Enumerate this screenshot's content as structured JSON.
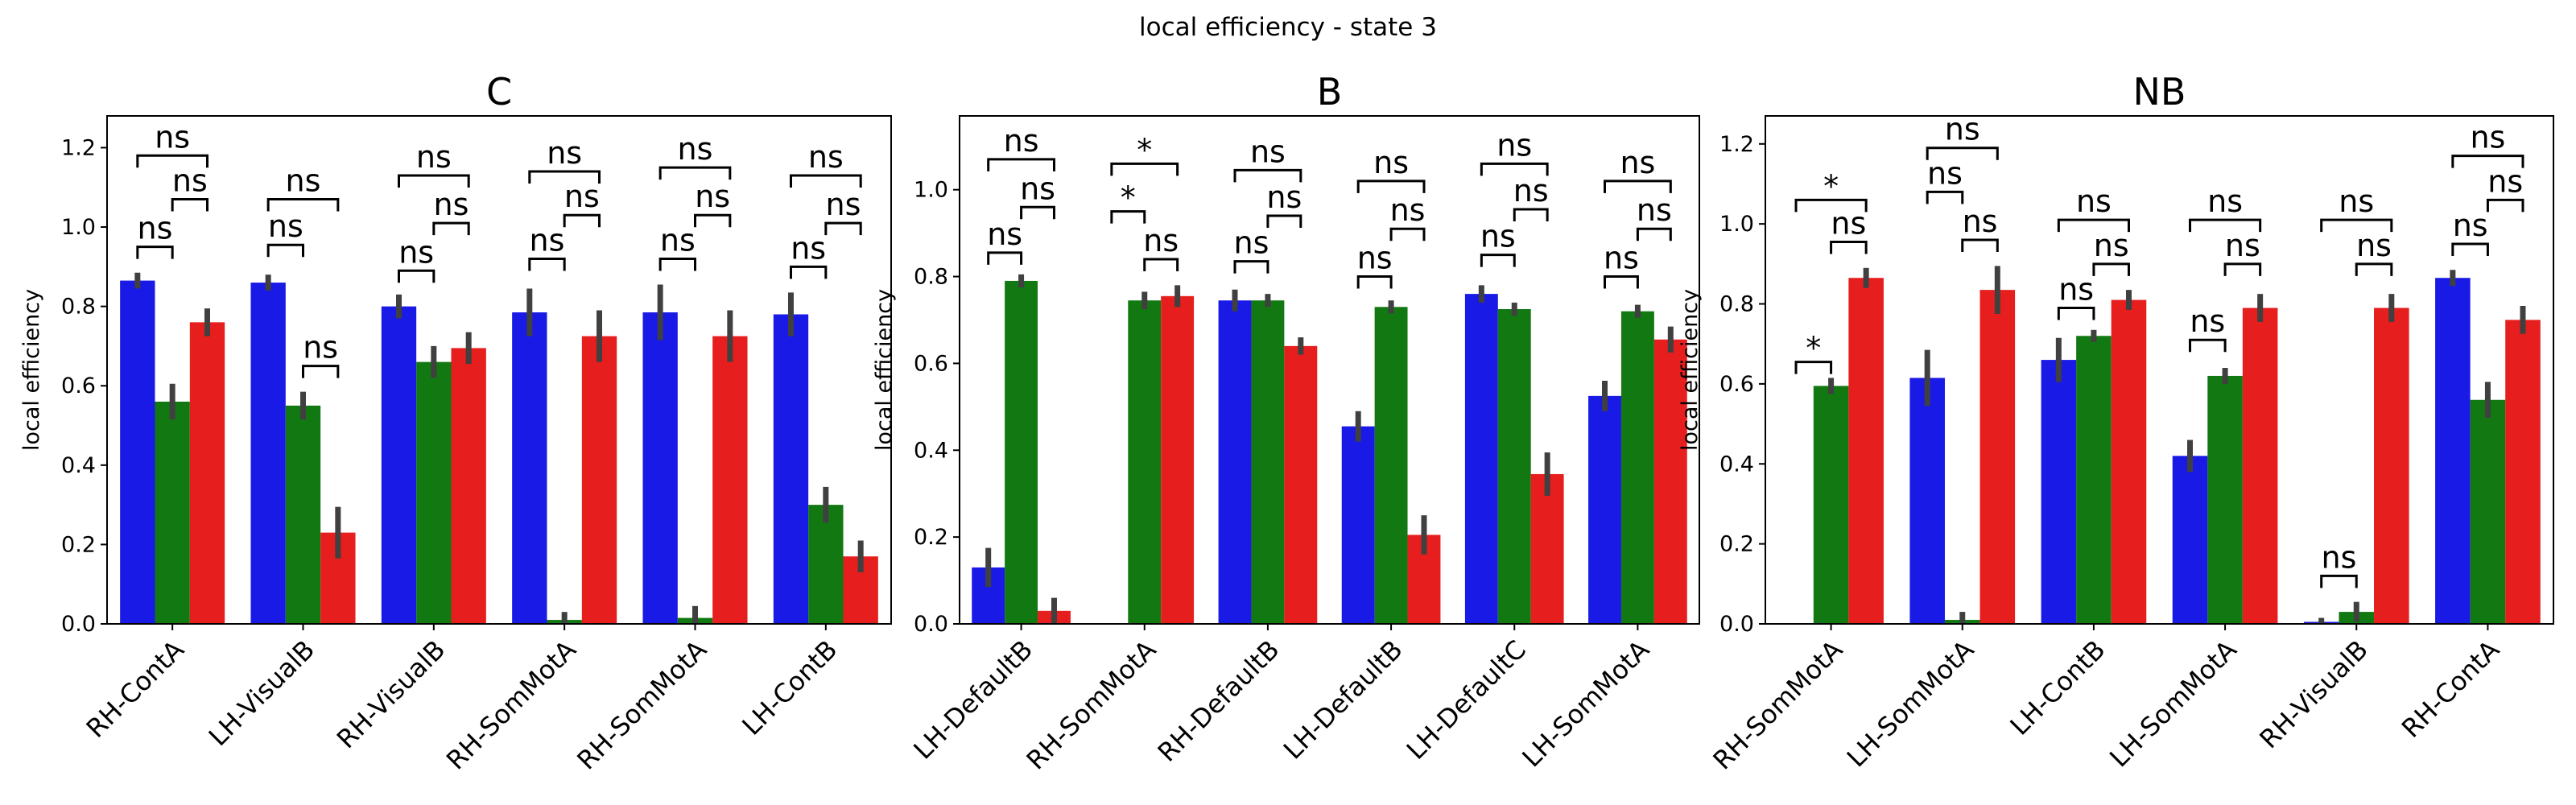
{
  "figure_title": "local efficiency - state 3",
  "colors": {
    "series1": "#1a1ae6",
    "series2": "#127812",
    "series3": "#e61e1e",
    "errorbar": "#404040"
  },
  "chart_data": [
    {
      "type": "bar",
      "title": "C",
      "ylabel": "local efficiency",
      "ylim": [
        0,
        1.28
      ],
      "yticks": [
        0.0,
        0.2,
        0.4,
        0.6,
        0.8,
        1.0,
        1.2
      ],
      "ytick_labels": [
        "0.0",
        "0.2",
        "0.4",
        "0.6",
        "0.8",
        "1.0",
        "1.2"
      ],
      "categories": [
        "RH-ContA",
        "LH-VisualB",
        "RH-VisualB",
        "RH-SomMotA",
        "RH-SomMotA",
        "LH-ContB"
      ],
      "series": [
        {
          "values": [
            0.865,
            0.86,
            0.8,
            0.785,
            0.785,
            0.78
          ],
          "err": [
            0.02,
            0.02,
            0.03,
            0.06,
            0.07,
            0.055
          ]
        },
        {
          "values": [
            0.56,
            0.55,
            0.66,
            0.01,
            0.015,
            0.3
          ],
          "err": [
            0.045,
            0.035,
            0.04,
            0.02,
            0.03,
            0.045
          ]
        },
        {
          "values": [
            0.76,
            0.23,
            0.695,
            0.725,
            0.725,
            0.17
          ],
          "err": [
            0.035,
            0.065,
            0.04,
            0.065,
            0.065,
            0.04
          ]
        }
      ],
      "annotations": [
        {
          "category": 0,
          "from": 0,
          "to": 1,
          "label": "ns",
          "y": 0.95
        },
        {
          "category": 0,
          "from": 1,
          "to": 2,
          "label": "ns",
          "y": 1.07
        },
        {
          "category": 0,
          "from": 0,
          "to": 2,
          "label": "ns",
          "y": 1.18
        },
        {
          "category": 1,
          "from": 0,
          "to": 1,
          "label": "ns",
          "y": 0.955
        },
        {
          "category": 1,
          "from": 1,
          "to": 2,
          "label": "ns",
          "y": 0.65
        },
        {
          "category": 1,
          "from": 0,
          "to": 2,
          "label": "ns",
          "y": 1.07
        },
        {
          "category": 2,
          "from": 0,
          "to": 1,
          "label": "ns",
          "y": 0.89
        },
        {
          "category": 2,
          "from": 1,
          "to": 2,
          "label": "ns",
          "y": 1.01
        },
        {
          "category": 2,
          "from": 0,
          "to": 2,
          "label": "ns",
          "y": 1.13
        },
        {
          "category": 3,
          "from": 0,
          "to": 1,
          "label": "ns",
          "y": 0.92
        },
        {
          "category": 3,
          "from": 1,
          "to": 2,
          "label": "ns",
          "y": 1.03
        },
        {
          "category": 3,
          "from": 0,
          "to": 2,
          "label": "ns",
          "y": 1.14
        },
        {
          "category": 4,
          "from": 0,
          "to": 1,
          "label": "ns",
          "y": 0.92
        },
        {
          "category": 4,
          "from": 1,
          "to": 2,
          "label": "ns",
          "y": 1.03
        },
        {
          "category": 4,
          "from": 0,
          "to": 2,
          "label": "ns",
          "y": 1.15
        },
        {
          "category": 5,
          "from": 0,
          "to": 1,
          "label": "ns",
          "y": 0.9
        },
        {
          "category": 5,
          "from": 1,
          "to": 2,
          "label": "ns",
          "y": 1.01
        },
        {
          "category": 5,
          "from": 0,
          "to": 2,
          "label": "ns",
          "y": 1.13
        }
      ]
    },
    {
      "type": "bar",
      "title": "B",
      "ylabel": "local efficiency",
      "ylim": [
        0,
        1.17
      ],
      "yticks": [
        0.0,
        0.2,
        0.4,
        0.6,
        0.8,
        1.0
      ],
      "ytick_labels": [
        "0.0",
        "0.2",
        "0.4",
        "0.6",
        "0.8",
        "1.0"
      ],
      "categories": [
        "LH-DefaultB",
        "RH-SomMotA",
        "RH-DefaultB",
        "LH-DefaultB",
        "LH-DefaultC",
        "LH-SomMotA"
      ],
      "series": [
        {
          "values": [
            0.13,
            0.0,
            0.745,
            0.455,
            0.76,
            0.525
          ],
          "err": [
            0.045,
            0.0,
            0.025,
            0.035,
            0.02,
            0.035
          ]
        },
        {
          "values": [
            0.79,
            0.745,
            0.745,
            0.73,
            0.725,
            0.72
          ],
          "err": [
            0.015,
            0.02,
            0.015,
            0.015,
            0.015,
            0.015
          ]
        },
        {
          "values": [
            0.03,
            0.755,
            0.64,
            0.205,
            0.345,
            0.655
          ],
          "err": [
            0.03,
            0.025,
            0.02,
            0.045,
            0.05,
            0.03
          ]
        }
      ],
      "annotations": [
        {
          "category": 0,
          "from": 0,
          "to": 1,
          "label": "ns",
          "y": 0.855
        },
        {
          "category": 0,
          "from": 1,
          "to": 2,
          "label": "ns",
          "y": 0.96
        },
        {
          "category": 0,
          "from": 0,
          "to": 2,
          "label": "ns",
          "y": 1.07
        },
        {
          "category": 1,
          "from": 0,
          "to": 1,
          "label": "*",
          "y": 0.95
        },
        {
          "category": 1,
          "from": 1,
          "to": 2,
          "label": "ns",
          "y": 0.84
        },
        {
          "category": 1,
          "from": 0,
          "to": 2,
          "label": "*",
          "y": 1.06
        },
        {
          "category": 2,
          "from": 0,
          "to": 1,
          "label": "ns",
          "y": 0.835
        },
        {
          "category": 2,
          "from": 1,
          "to": 2,
          "label": "ns",
          "y": 0.94
        },
        {
          "category": 2,
          "from": 0,
          "to": 2,
          "label": "ns",
          "y": 1.045
        },
        {
          "category": 3,
          "from": 0,
          "to": 1,
          "label": "ns",
          "y": 0.8
        },
        {
          "category": 3,
          "from": 1,
          "to": 2,
          "label": "ns",
          "y": 0.91
        },
        {
          "category": 3,
          "from": 0,
          "to": 2,
          "label": "ns",
          "y": 1.02
        },
        {
          "category": 4,
          "from": 0,
          "to": 1,
          "label": "ns",
          "y": 0.85
        },
        {
          "category": 4,
          "from": 1,
          "to": 2,
          "label": "ns",
          "y": 0.955
        },
        {
          "category": 4,
          "from": 0,
          "to": 2,
          "label": "ns",
          "y": 1.06
        },
        {
          "category": 5,
          "from": 0,
          "to": 1,
          "label": "ns",
          "y": 0.8
        },
        {
          "category": 5,
          "from": 1,
          "to": 2,
          "label": "ns",
          "y": 0.91
        },
        {
          "category": 5,
          "from": 0,
          "to": 2,
          "label": "ns",
          "y": 1.02
        }
      ]
    },
    {
      "type": "bar",
      "title": "NB",
      "ylabel": "local efficiency",
      "ylim": [
        0,
        1.27
      ],
      "yticks": [
        0.0,
        0.2,
        0.4,
        0.6,
        0.8,
        1.0,
        1.2
      ],
      "ytick_labels": [
        "0.0",
        "0.2",
        "0.4",
        "0.6",
        "0.8",
        "1.0",
        "1.2"
      ],
      "categories": [
        "RH-SomMotA",
        "LH-SomMotA",
        "LH-ContB",
        "LH-SomMotA",
        "RH-VisualB",
        "RH-ContA"
      ],
      "series": [
        {
          "values": [
            0.0,
            0.615,
            0.66,
            0.42,
            0.005,
            0.865
          ],
          "err": [
            0.0,
            0.07,
            0.055,
            0.04,
            0.01,
            0.02
          ]
        },
        {
          "values": [
            0.595,
            0.01,
            0.72,
            0.62,
            0.03,
            0.56
          ],
          "err": [
            0.02,
            0.02,
            0.015,
            0.02,
            0.025,
            0.045
          ]
        },
        {
          "values": [
            0.865,
            0.835,
            0.81,
            0.79,
            0.79,
            0.76
          ],
          "err": [
            0.025,
            0.06,
            0.025,
            0.035,
            0.035,
            0.035
          ]
        }
      ],
      "annotations": [
        {
          "category": 0,
          "from": 0,
          "to": 1,
          "label": "*",
          "y": 0.655
        },
        {
          "category": 0,
          "from": 1,
          "to": 2,
          "label": "ns",
          "y": 0.955
        },
        {
          "category": 0,
          "from": 0,
          "to": 2,
          "label": "*",
          "y": 1.06
        },
        {
          "category": 1,
          "from": 0,
          "to": 1,
          "label": "ns",
          "y": 1.08
        },
        {
          "category": 1,
          "from": 1,
          "to": 2,
          "label": "ns",
          "y": 0.96
        },
        {
          "category": 1,
          "from": 0,
          "to": 2,
          "label": "ns",
          "y": 1.19
        },
        {
          "category": 2,
          "from": 0,
          "to": 1,
          "label": "ns",
          "y": 0.79
        },
        {
          "category": 2,
          "from": 1,
          "to": 2,
          "label": "ns",
          "y": 0.9
        },
        {
          "category": 2,
          "from": 0,
          "to": 2,
          "label": "ns",
          "y": 1.01
        },
        {
          "category": 3,
          "from": 0,
          "to": 1,
          "label": "ns",
          "y": 0.71
        },
        {
          "category": 3,
          "from": 1,
          "to": 2,
          "label": "ns",
          "y": 0.9
        },
        {
          "category": 3,
          "from": 0,
          "to": 2,
          "label": "ns",
          "y": 1.01
        },
        {
          "category": 4,
          "from": 0,
          "to": 1,
          "label": "ns",
          "y": 0.12
        },
        {
          "category": 4,
          "from": 1,
          "to": 2,
          "label": "ns",
          "y": 0.9
        },
        {
          "category": 4,
          "from": 0,
          "to": 2,
          "label": "ns",
          "y": 1.01
        },
        {
          "category": 5,
          "from": 0,
          "to": 1,
          "label": "ns",
          "y": 0.95
        },
        {
          "category": 5,
          "from": 1,
          "to": 2,
          "label": "ns",
          "y": 1.06
        },
        {
          "category": 5,
          "from": 0,
          "to": 2,
          "label": "ns",
          "y": 1.17
        }
      ]
    }
  ]
}
